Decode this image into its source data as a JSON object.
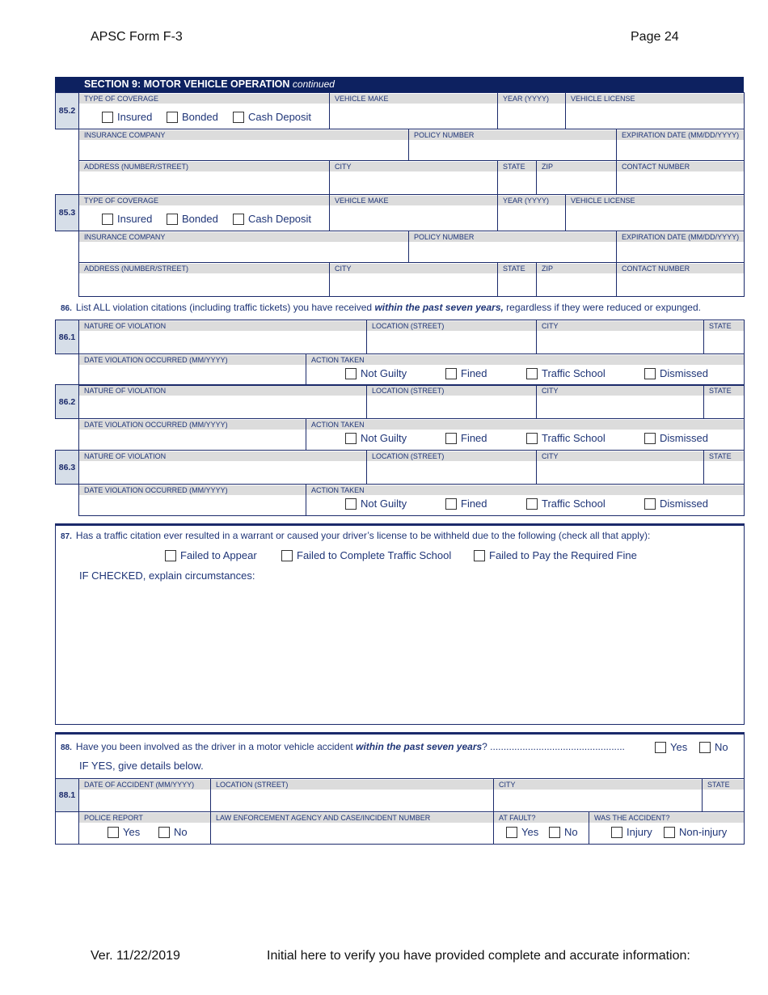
{
  "header": {
    "form": "APSC Form F-3",
    "page": "Page 24"
  },
  "section": {
    "title": "SECTION 9:  MOTOR VEHICLE OPERATION",
    "suffix": "continued"
  },
  "vehicle_labels": {
    "type_of_coverage": "TYPE OF COVERAGE",
    "vehicle_make": "VEHICLE MAKE",
    "year": "YEAR (YYYY)",
    "vehicle_license": "VEHICLE LICENSE",
    "insurance_company": "INSURANCE COMPANY",
    "policy_number": "POLICY NUMBER",
    "expiration_date": "EXPIRATION DATE (MM/DD/YYYY)",
    "address": "ADDRESS (NUMBER/STREET)",
    "city": "CITY",
    "state": "STATE",
    "zip": "ZIP",
    "contact_number": "CONTACT NUMBER"
  },
  "coverage_options": [
    "Insured",
    "Bonded",
    "Cash Deposit"
  ],
  "vehicle_entries": [
    {
      "number": "85.2"
    },
    {
      "number": "85.3"
    }
  ],
  "q86": {
    "number": "86.",
    "text_pre": "List ALL violation citations (including traffic tickets) you have received ",
    "text_em": "within the past seven years,",
    "text_post": " regardless if they were reduced or expunged."
  },
  "violation_labels": {
    "nature": "NATURE OF VIOLATION",
    "location": "LOCATION (STREET)",
    "city": "CITY",
    "state": "STATE",
    "date": "DATE VIOLATION OCCURRED  (MM/YYYY)",
    "action": "ACTION TAKEN"
  },
  "action_options": [
    "Not Guilty",
    "Fined",
    "Traffic School",
    "Dismissed"
  ],
  "violation_entries": [
    {
      "number": "86.1"
    },
    {
      "number": "86.2"
    },
    {
      "number": "86.3"
    }
  ],
  "q87": {
    "number": "87.",
    "text": "Has a traffic citation ever resulted in a warrant or caused your driver’s license to be withheld due to the following (check all that apply):",
    "options": [
      "Failed to Appear",
      "Failed to Complete Traffic School",
      "Failed to Pay the Required Fine"
    ],
    "explain": "IF CHECKED, explain circumstances:"
  },
  "q88": {
    "number": "88.",
    "text_pre": "Have you been involved as the driver in a motor vehicle accident ",
    "text_em": "within the past seven years",
    "text_post": "? ..................................................",
    "yes": "Yes",
    "no": "No",
    "if_yes": "IF YES, give details below."
  },
  "accident": {
    "number": "88.1",
    "labels": {
      "date": "DATE OF ACCIDENT (MM/YYYY)",
      "location": "LOCATION (STREET)",
      "city": "CITY",
      "state": "STATE",
      "police_report": "POLICE REPORT",
      "agency": "LAW ENFORCEMENT AGENCY AND CASE/INCIDENT NUMBER",
      "at_fault": "AT FAULT?",
      "was_accident": "WAS THE ACCIDENT?"
    },
    "police_options": [
      "Yes",
      "No"
    ],
    "fault_options": [
      "Yes",
      "No"
    ],
    "accident_options": [
      "Injury",
      "Non-injury"
    ]
  },
  "footer": {
    "version": "Ver. 11/22/2019",
    "initial": "Initial here to verify you have provided complete and accurate information:"
  },
  "colors": {
    "navy": "#0d2160",
    "label_bg": "#dcdcdc",
    "number_bg": "#d6dee8",
    "text": "#1f3577"
  }
}
